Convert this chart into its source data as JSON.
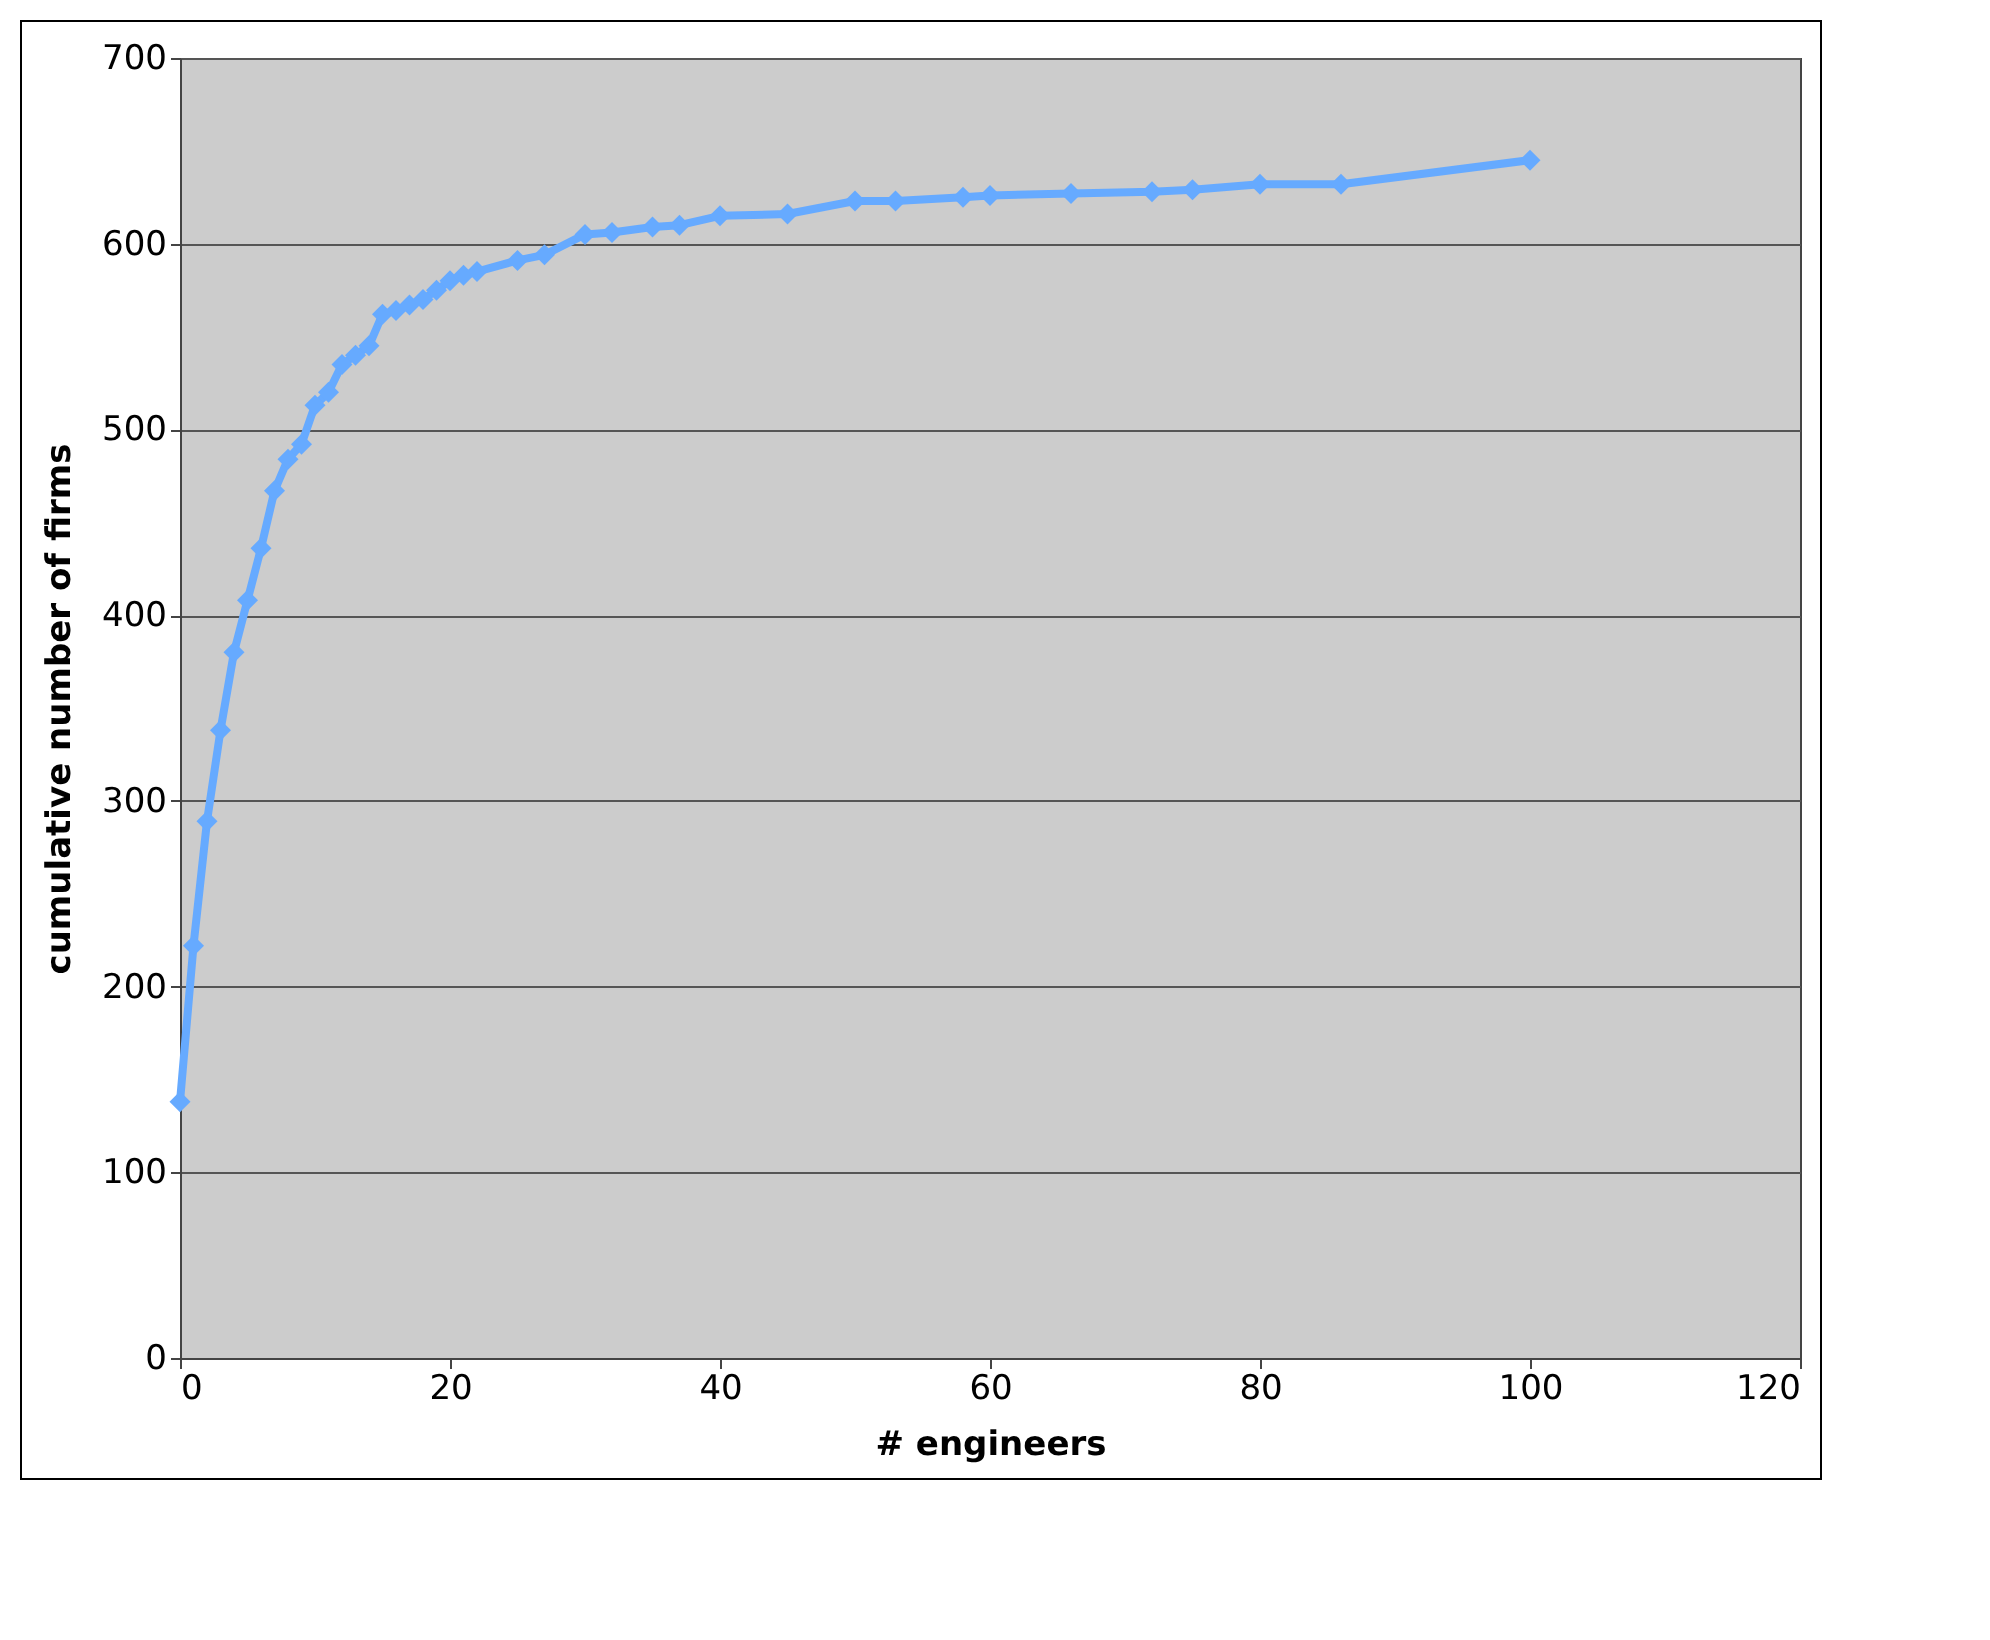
{
  "chart_data": {
    "type": "line",
    "xlabel": "# engineers",
    "ylabel": "cumulative number of firms",
    "x": [
      0,
      1,
      2,
      3,
      4,
      5,
      6,
      7,
      8,
      9,
      10,
      11,
      12,
      13,
      14,
      15,
      16,
      17,
      18,
      19,
      20,
      21,
      22,
      25,
      27,
      30,
      32,
      35,
      37,
      40,
      45,
      50,
      53,
      58,
      60,
      66,
      72,
      75,
      80,
      86,
      100
    ],
    "series": [
      {
        "color": "#66aaff",
        "values": [
          138,
          222,
          289,
          338,
          380,
          408,
          436,
          467,
          484,
          492,
          513,
          520,
          535,
          540,
          545,
          562,
          564,
          567,
          570,
          575,
          580,
          583,
          585,
          591,
          594,
          605,
          606,
          609,
          610,
          615,
          616,
          623,
          623,
          625,
          626,
          627,
          628,
          629,
          632,
          632,
          645
        ]
      }
    ],
    "xlim": [
      0,
      120
    ],
    "xticks": [
      0,
      20,
      40,
      60,
      80,
      100,
      120
    ],
    "ylim": [
      0,
      700
    ],
    "yticks": [
      0,
      100,
      200,
      300,
      400,
      500,
      600,
      700
    ],
    "grid": "y",
    "marker": "diamond",
    "line_style": "solid",
    "legend": false
  }
}
